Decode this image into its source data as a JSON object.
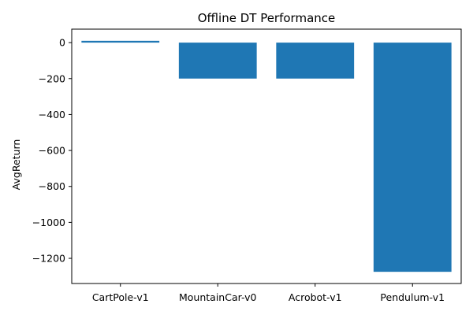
{
  "chart_data": {
    "type": "bar",
    "title": "Offline DT Performance",
    "xlabel": "",
    "ylabel": "AvgReturn",
    "categories": [
      "CartPole-v1",
      "MountainCar-v0",
      "Acrobot-v1",
      "Pendulum-v1"
    ],
    "values": [
      10,
      -200,
      -200,
      -1275
    ],
    "ylim": [
      -1340,
      75
    ],
    "yticks": [
      0,
      -200,
      -400,
      -600,
      -800,
      -1000,
      -1200
    ],
    "ytick_labels": [
      "0",
      "−200",
      "−400",
      "−600",
      "−800",
      "−1000",
      "−1200"
    ],
    "bar_color": "#1f77b4",
    "grid": false,
    "legend": "none"
  }
}
